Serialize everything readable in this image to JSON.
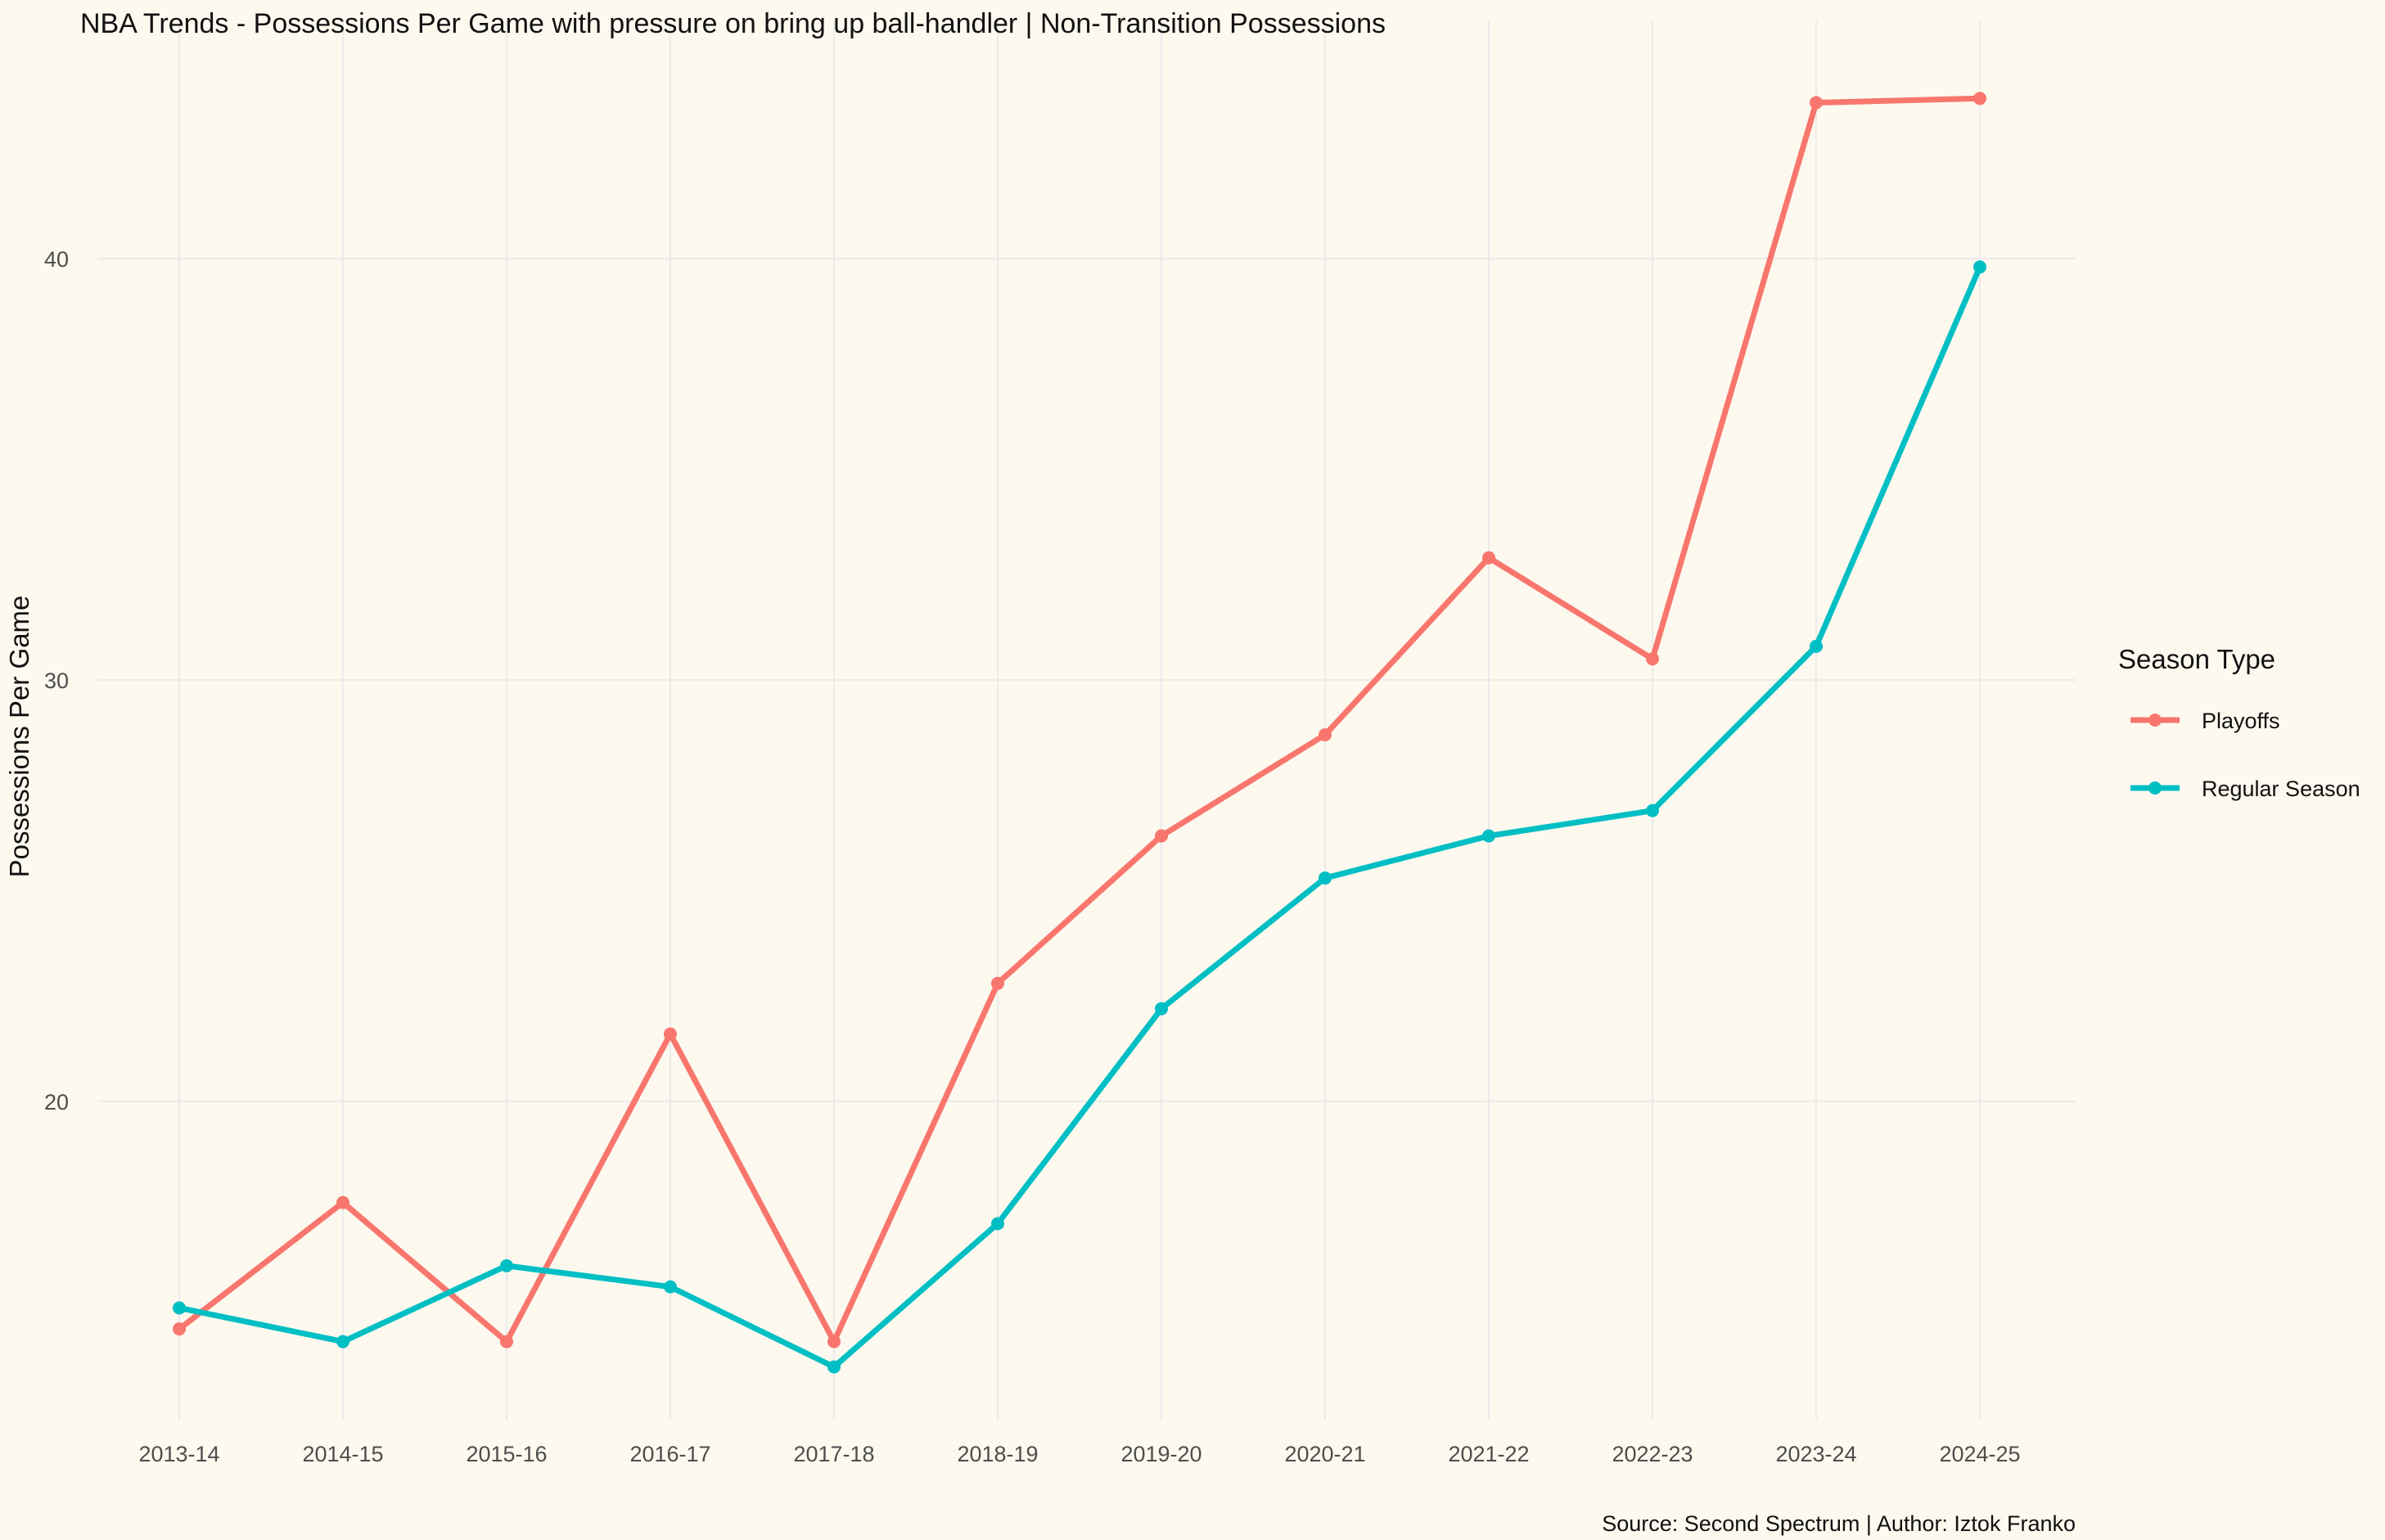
{
  "chart_data": {
    "type": "line",
    "title": "NBA Trends - Possessions Per Game with pressure on bring up ball-handler | Non-Transition Possessions",
    "xlabel": "",
    "ylabel": "Possessions Per Game",
    "categories": [
      "2013-14",
      "2014-15",
      "2015-16",
      "2016-17",
      "2017-18",
      "2018-19",
      "2019-20",
      "2020-21",
      "2021-22",
      "2022-23",
      "2023-24",
      "2024-25"
    ],
    "yticks": [
      20,
      30,
      40
    ],
    "ylim": [
      12.9,
      45.2
    ],
    "grid": true,
    "legend": {
      "title": "Season Type",
      "position": "right"
    },
    "series": [
      {
        "name": "Playoffs",
        "color": "#f8766d",
        "values": [
          14.6,
          17.6,
          14.3,
          21.6,
          14.3,
          22.8,
          26.3,
          28.7,
          32.9,
          30.5,
          43.7,
          43.8
        ]
      },
      {
        "name": "Regular Season",
        "color": "#00bfc4",
        "values": [
          15.1,
          14.3,
          16.1,
          15.6,
          13.7,
          17.1,
          22.2,
          25.3,
          26.3,
          26.9,
          30.8,
          39.8
        ]
      }
    ],
    "caption": "Source: Second Spectrum | Author: Iztok Franko"
  }
}
